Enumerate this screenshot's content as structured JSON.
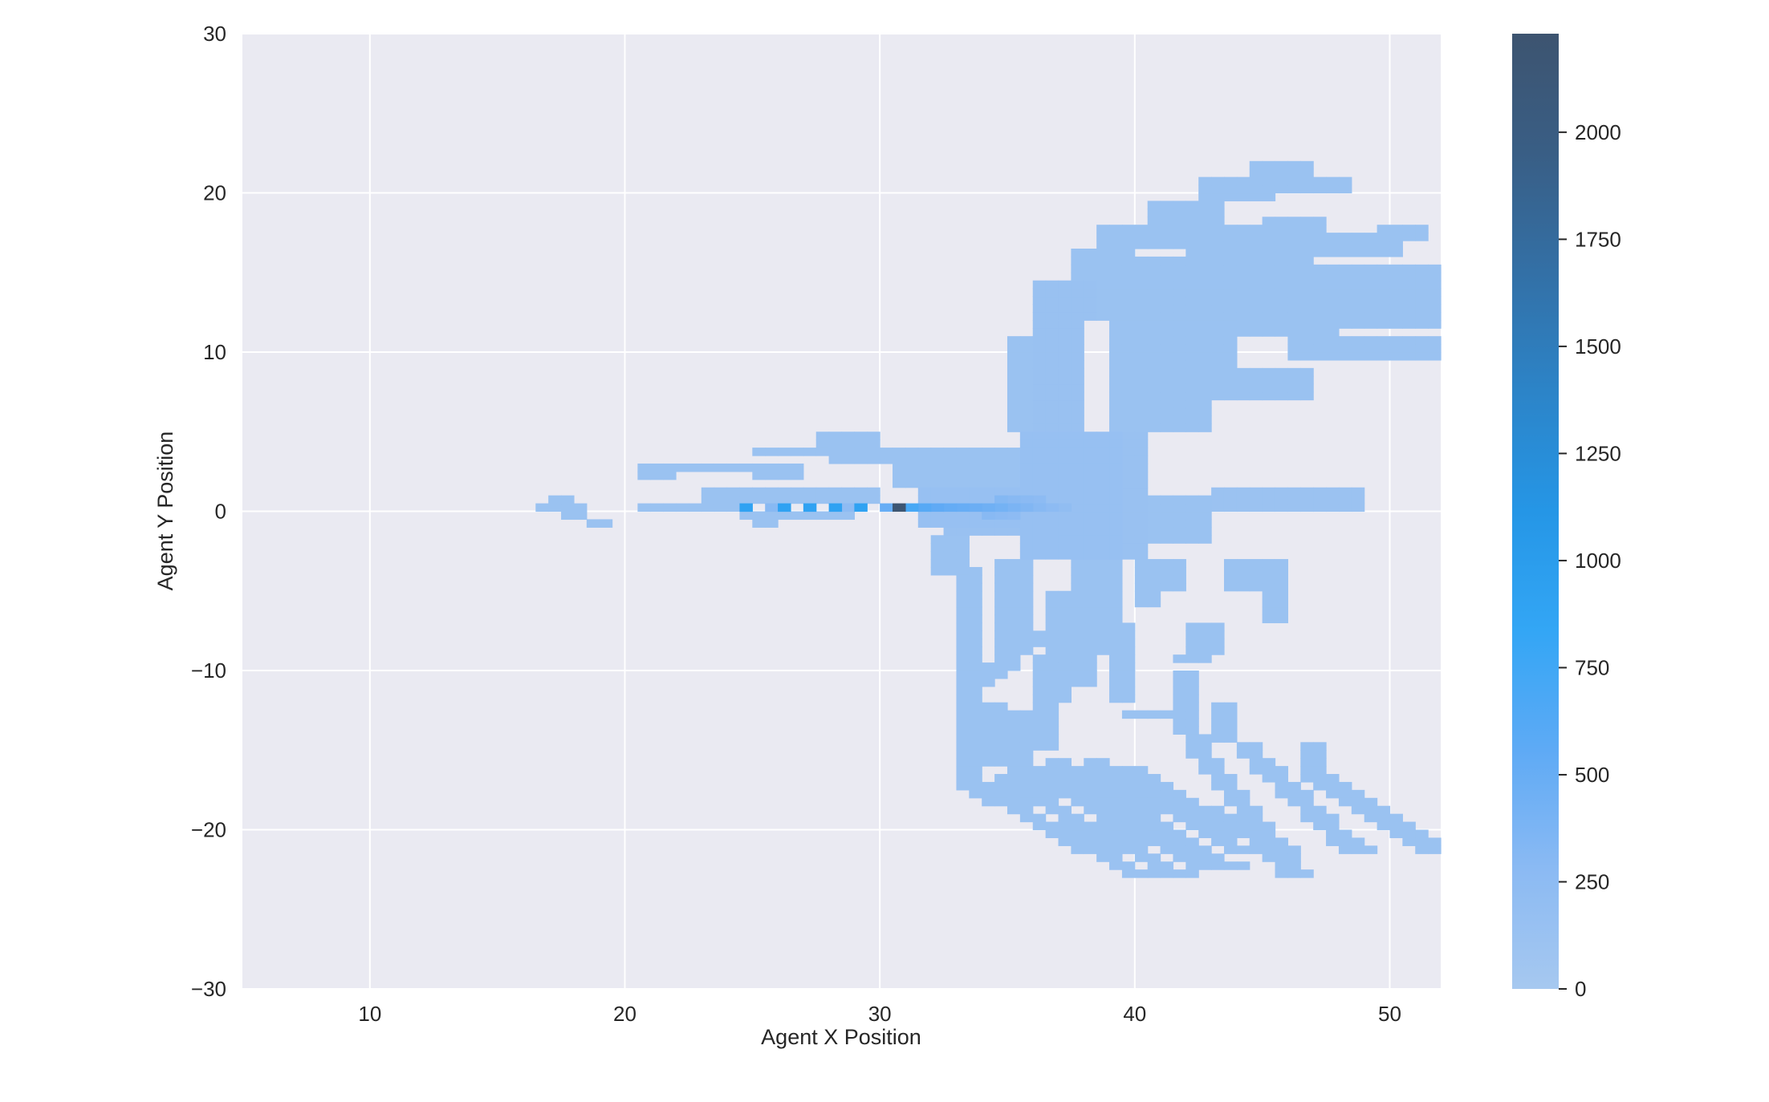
{
  "chart_data": {
    "type": "heatmap",
    "title": "",
    "xlabel": "Agent X Position",
    "ylabel": "Agent Y Position",
    "xlim": [
      5,
      52
    ],
    "ylim": [
      -30,
      30
    ],
    "x_ticks": [
      10,
      20,
      30,
      40,
      50
    ],
    "y_ticks": [
      -30,
      -20,
      -10,
      0,
      10,
      20,
      30
    ],
    "x_tick_labels": [
      "10",
      "20",
      "30",
      "40",
      "50"
    ],
    "y_tick_labels": [
      "−30",
      "−20",
      "−10",
      "0",
      "10",
      "20",
      "30"
    ],
    "grid": true,
    "bin_size": 0.5,
    "colorbar": {
      "range": [
        0,
        2230
      ],
      "ticks": [
        0,
        250,
        500,
        750,
        1000,
        1250,
        1500,
        1750,
        2000
      ],
      "tick_labels": [
        "0",
        "250",
        "500",
        "750",
        "1000",
        "1250",
        "1500",
        "1750",
        "2000"
      ],
      "colors": [
        "#a6c8f0",
        "#8bbaf3",
        "#5eaaf5",
        "#33a6f5",
        "#2596e6",
        "#2c84c8",
        "#3370a6",
        "#395e85",
        "#3d5470"
      ]
    },
    "cells": [
      [
        30.75,
        0,
        2200
      ],
      [
        31.25,
        0,
        700
      ],
      [
        31.75,
        0,
        600
      ],
      [
        32.25,
        0,
        550
      ],
      [
        32.75,
        0,
        520
      ],
      [
        33.25,
        0,
        500
      ],
      [
        33.75,
        0,
        480
      ],
      [
        34.25,
        0,
        450
      ],
      [
        34.75,
        0,
        420
      ],
      [
        35.25,
        0,
        380
      ],
      [
        35.75,
        0,
        340
      ],
      [
        36.25,
        0,
        300
      ],
      [
        36.75,
        0,
        260
      ],
      [
        37.25,
        0,
        220
      ],
      [
        24.75,
        0,
        900
      ],
      [
        26.25,
        0,
        900
      ],
      [
        27.25,
        0,
        900
      ],
      [
        28.25,
        0,
        900
      ],
      [
        29.25,
        0,
        900
      ],
      [
        30.25,
        0,
        500
      ],
      [
        25.75,
        0,
        300
      ],
      [
        28.75,
        0,
        250
      ],
      [
        34.75,
        0.5,
        320
      ],
      [
        35.25,
        0.5,
        300
      ],
      [
        35.75,
        0.5,
        280
      ],
      [
        36.25,
        0.5,
        260
      ],
      [
        34.25,
        -0.5,
        300
      ],
      [
        34.75,
        -0.5,
        280
      ],
      [
        35.25,
        -0.5,
        260
      ]
    ],
    "regions": [
      {
        "x": [
          16.5,
          18.5
        ],
        "y": [
          0,
          0.5
        ],
        "count": 120
      },
      {
        "x": [
          17,
          18
        ],
        "y": [
          0.5,
          1
        ],
        "count": 120
      },
      {
        "x": [
          17.5,
          18.5
        ],
        "y": [
          -0.5,
          0
        ],
        "count": 120
      },
      {
        "x": [
          18.5,
          19.5
        ],
        "y": [
          -1,
          -0.5
        ],
        "count": 120
      },
      {
        "x": [
          20.5,
          22
        ],
        "y": [
          2,
          3
        ],
        "count": 120
      },
      {
        "x": [
          22,
          25
        ],
        "y": [
          2.5,
          3
        ],
        "count": 120
      },
      {
        "x": [
          20.5,
          24.5
        ],
        "y": [
          0,
          0.5
        ],
        "count": 120
      },
      {
        "x": [
          23,
          30
        ],
        "y": [
          0.5,
          1.5
        ],
        "count": 120
      },
      {
        "x": [
          24.5,
          29
        ],
        "y": [
          -0.5,
          0
        ],
        "count": 120
      },
      {
        "x": [
          25,
          26
        ],
        "y": [
          -1,
          -0.5
        ],
        "count": 120
      },
      {
        "x": [
          25,
          27
        ],
        "y": [
          2,
          3
        ],
        "count": 120
      },
      {
        "x": [
          25,
          28
        ],
        "y": [
          3.5,
          4
        ],
        "count": 120
      },
      {
        "x": [
          27.5,
          30
        ],
        "y": [
          4,
          5
        ],
        "count": 120
      },
      {
        "x": [
          28,
          35.5
        ],
        "y": [
          3,
          4
        ],
        "count": 120
      },
      {
        "x": [
          30.5,
          35.5
        ],
        "y": [
          1.5,
          3
        ],
        "count": 120
      },
      {
        "x": [
          31.5,
          37
        ],
        "y": [
          -1,
          1.5
        ],
        "count": 150
      },
      {
        "x": [
          32.5,
          37
        ],
        "y": [
          -1.5,
          -1
        ],
        "count": 130
      },
      {
        "x": [
          35.5,
          39.5
        ],
        "y": [
          -3,
          5
        ],
        "count": 150
      },
      {
        "x": [
          39,
          40.5
        ],
        "y": [
          -3,
          5
        ],
        "count": 130
      },
      {
        "x": [
          40.5,
          43
        ],
        "y": [
          -2,
          1
        ],
        "count": 120
      },
      {
        "x": [
          43,
          49
        ],
        "y": [
          0,
          1.2
        ],
        "count": 110
      },
      {
        "x": [
          36,
          38
        ],
        "y": [
          5,
          12
        ],
        "count": 130
      },
      {
        "x": [
          36,
          38.5
        ],
        "y": [
          12,
          14.5
        ],
        "count": 130
      },
      {
        "x": [
          37.5,
          40
        ],
        "y": [
          14.5,
          16.5
        ],
        "count": 120
      },
      {
        "x": [
          38.5,
          42
        ],
        "y": [
          16.5,
          18
        ],
        "count": 120
      },
      {
        "x": [
          40.5,
          43.5
        ],
        "y": [
          18,
          19.5
        ],
        "count": 120
      },
      {
        "x": [
          42.5,
          45.5
        ],
        "y": [
          19.5,
          21
        ],
        "count": 120
      },
      {
        "x": [
          44.5,
          47
        ],
        "y": [
          21,
          22
        ],
        "count": 120
      },
      {
        "x": [
          45.5,
          48.5
        ],
        "y": [
          20,
          21
        ],
        "count": 120
      },
      {
        "x": [
          38,
          44
        ],
        "y": [
          12,
          16
        ],
        "count": 120
      },
      {
        "x": [
          42,
          47
        ],
        "y": [
          14,
          18
        ],
        "count": 120
      },
      {
        "x": [
          45,
          47.5
        ],
        "y": [
          17,
          18.5
        ],
        "count": 120
      },
      {
        "x": [
          46,
          50.5
        ],
        "y": [
          16,
          17.5
        ],
        "count": 120
      },
      {
        "x": [
          49.5,
          51.5
        ],
        "y": [
          17,
          18
        ],
        "count": 120
      },
      {
        "x": [
          39,
          44
        ],
        "y": [
          8,
          12
        ],
        "count": 120
      },
      {
        "x": [
          44,
          48
        ],
        "y": [
          11,
          14
        ],
        "count": 120
      },
      {
        "x": [
          47,
          52
        ],
        "y": [
          11.5,
          15.5
        ],
        "count": 120
      },
      {
        "x": [
          46,
          52
        ],
        "y": [
          9.5,
          11
        ],
        "count": 120
      },
      {
        "x": [
          39,
          43
        ],
        "y": [
          5,
          8
        ],
        "count": 120
      },
      {
        "x": [
          43,
          47
        ],
        "y": [
          7,
          9
        ],
        "count": 120
      },
      {
        "x": [
          35,
          36
        ],
        "y": [
          5,
          11
        ],
        "count": 120
      },
      {
        "x": [
          32,
          33.5
        ],
        "y": [
          -4,
          -1.5
        ],
        "count": 120
      },
      {
        "x": [
          33,
          34
        ],
        "y": [
          -17,
          -3.5
        ],
        "count": 120
      },
      {
        "x": [
          34,
          35
        ],
        "y": [
          -16,
          -12
        ],
        "count": 120
      },
      {
        "x": [
          34.5,
          36
        ],
        "y": [
          -9,
          -3
        ],
        "count": 120
      },
      {
        "x": [
          35,
          36
        ],
        "y": [
          -17,
          -12.5
        ],
        "count": 120
      },
      {
        "x": [
          36,
          37
        ],
        "y": [
          -15,
          -9
        ],
        "count": 120
      },
      {
        "x": [
          36.5,
          37.5
        ],
        "y": [
          -12,
          -5
        ],
        "count": 120
      },
      {
        "x": [
          37.5,
          38.5
        ],
        "y": [
          -11,
          -3
        ],
        "count": 120
      },
      {
        "x": [
          38.5,
          39.5
        ],
        "y": [
          -9,
          -3
        ],
        "count": 120
      },
      {
        "x": [
          39,
          40
        ],
        "y": [
          -12,
          -7
        ],
        "count": 120
      },
      {
        "x": [
          40,
          41
        ],
        "y": [
          -6,
          -3
        ],
        "count": 120
      },
      {
        "x": [
          41,
          42
        ],
        "y": [
          -5,
          -3
        ],
        "count": 120
      },
      {
        "x": [
          41.5,
          42.5
        ],
        "y": [
          -14,
          -10
        ],
        "count": 120
      },
      {
        "x": [
          42,
          43.5
        ],
        "y": [
          -9,
          -7
        ],
        "count": 120
      },
      {
        "x": [
          43,
          44
        ],
        "y": [
          -14.5,
          -12
        ],
        "count": 120
      },
      {
        "x": [
          43.5,
          46
        ],
        "y": [
          -5,
          -3
        ],
        "count": 120
      },
      {
        "x": [
          45,
          46
        ],
        "y": [
          -7,
          -5
        ],
        "count": 120
      },
      {
        "x": [
          46.5,
          47.5
        ],
        "y": [
          -17,
          -14.5
        ],
        "count": 120
      },
      {
        "x": [
          39.5,
          42
        ],
        "y": [
          -13,
          -12.5
        ],
        "count": 120
      }
    ],
    "streaks": [
      {
        "x0": 33,
        "y0": -17,
        "x1": 40,
        "y1": -23,
        "count": 120
      },
      {
        "x0": 34.5,
        "y0": -17,
        "x1": 41.5,
        "y1": -23,
        "count": 120
      },
      {
        "x0": 35.5,
        "y0": -16.5,
        "x1": 42.5,
        "y1": -22.5,
        "count": 120
      },
      {
        "x0": 36.5,
        "y0": -16,
        "x1": 43.5,
        "y1": -22.5,
        "count": 120
      },
      {
        "x0": 38,
        "y0": -16,
        "x1": 44,
        "y1": -21.5,
        "count": 120
      },
      {
        "x0": 39.5,
        "y0": -16.5,
        "x1": 45.5,
        "y1": -21.5,
        "count": 120
      },
      {
        "x0": 42,
        "y0": -14.5,
        "x1": 46,
        "y1": -23,
        "count": 120
      },
      {
        "x0": 44,
        "y0": -15,
        "x1": 48.5,
        "y1": -21.5,
        "count": 120
      },
      {
        "x0": 46.5,
        "y0": -16.5,
        "x1": 51.5,
        "y1": -21.5,
        "count": 120
      },
      {
        "x0": 40.5,
        "y0": -18,
        "x1": 41.5,
        "y1": -19,
        "count": 120
      },
      {
        "x0": 36,
        "y0": -8,
        "x1": 33.5,
        "y1": -11,
        "count": 120
      },
      {
        "x0": 41.5,
        "y0": -9.5,
        "x1": 42.5,
        "y1": -9,
        "count": 120
      }
    ]
  }
}
